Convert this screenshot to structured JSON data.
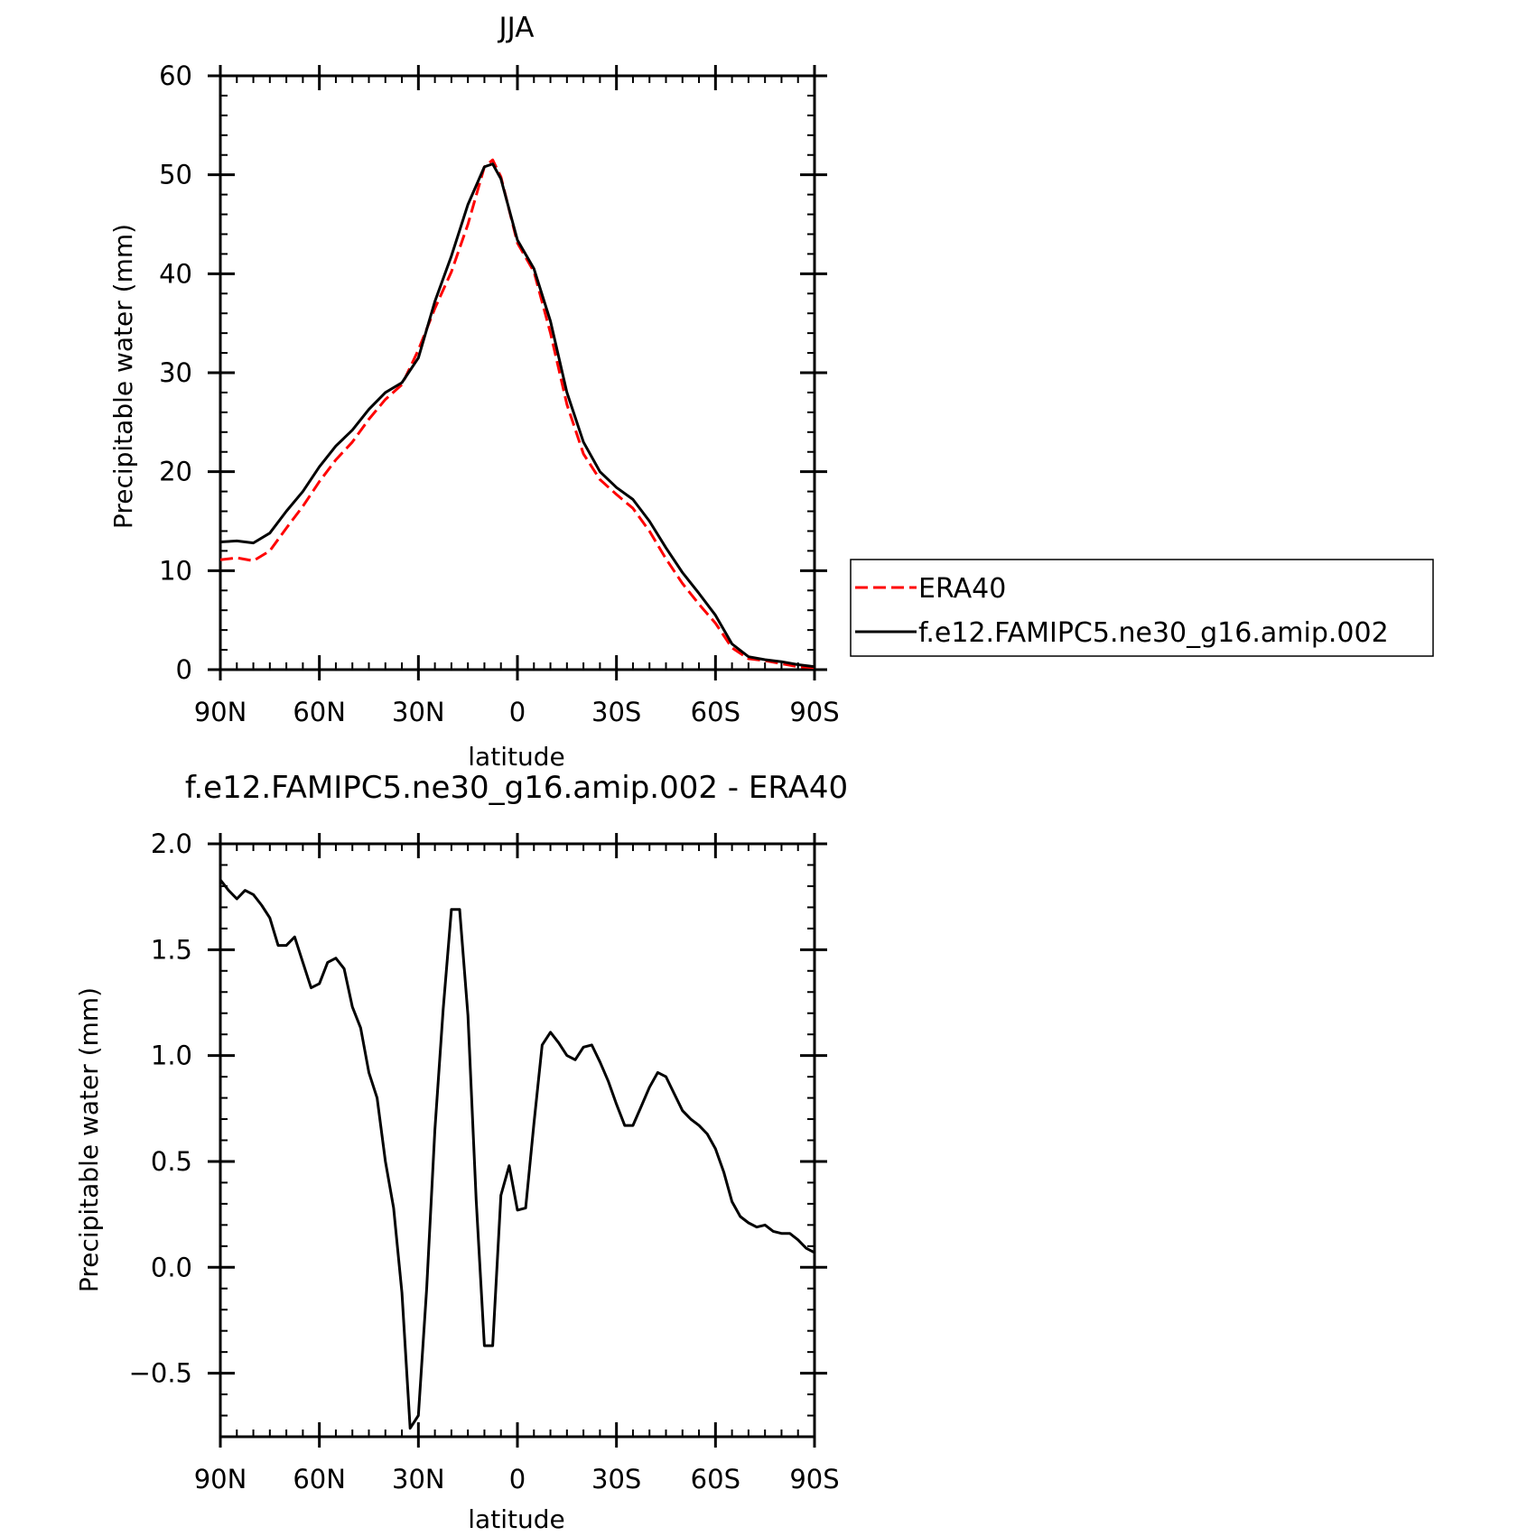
{
  "chart_data": [
    {
      "type": "line",
      "title": "JJA",
      "xlabel": "latitude",
      "ylabel": "Precipitable water (mm)",
      "xlim": [
        90,
        -90
      ],
      "ylim": [
        0,
        60
      ],
      "x_ticks": [
        90,
        60,
        30,
        0,
        -30,
        -60,
        -90
      ],
      "x_tick_labels": [
        "90N",
        "60N",
        "30N",
        "0",
        "30S",
        "60S",
        "90S"
      ],
      "y_ticks": [
        0,
        10,
        20,
        30,
        40,
        50,
        60
      ],
      "y_tick_labels": [
        "0",
        "10",
        "20",
        "30",
        "40",
        "50",
        "60"
      ],
      "legend_position": "right",
      "series": [
        {
          "name": "ERA40",
          "color": "#ff0000",
          "dash": "dashed",
          "x": [
            90,
            85,
            80,
            75,
            70,
            65,
            60,
            55,
            50,
            45,
            40,
            35,
            30,
            25,
            20,
            15,
            10,
            7.5,
            5,
            0,
            -5,
            -10,
            -15,
            -20,
            -25,
            -30,
            -35,
            -40,
            -45,
            -50,
            -55,
            -60,
            -65,
            -70,
            -75,
            -80,
            -85,
            -90
          ],
          "values": [
            11.1,
            11.3,
            11.0,
            12.0,
            14.3,
            16.5,
            19.0,
            21.2,
            23.0,
            25.3,
            27.3,
            28.8,
            32.3,
            36.5,
            40.2,
            45.0,
            50.8,
            51.5,
            49.8,
            43.1,
            40.2,
            34.0,
            26.8,
            21.8,
            19.2,
            17.7,
            16.3,
            14.0,
            11.2,
            8.7,
            6.6,
            4.7,
            2.2,
            1.1,
            0.9,
            0.6,
            0.3,
            0.2
          ]
        },
        {
          "name": "f.e12.FAMIPC5.ne30_g16.amip.002",
          "color": "#000000",
          "dash": "solid",
          "x": [
            90,
            85,
            80,
            75,
            70,
            65,
            60,
            55,
            50,
            45,
            40,
            35,
            30,
            25,
            20,
            15,
            10,
            7.5,
            5,
            0,
            -5,
            -10,
            -15,
            -20,
            -25,
            -30,
            -35,
            -40,
            -45,
            -50,
            -55,
            -60,
            -65,
            -70,
            -75,
            -80,
            -85,
            -90
          ],
          "values": [
            12.9,
            13.0,
            12.8,
            13.8,
            16.0,
            18.0,
            20.5,
            22.6,
            24.2,
            26.3,
            28.0,
            29.0,
            31.5,
            37.2,
            41.8,
            47.0,
            50.8,
            51.1,
            49.6,
            43.4,
            40.5,
            35.2,
            28.0,
            23.0,
            20.0,
            18.4,
            17.2,
            15.0,
            12.3,
            9.8,
            7.7,
            5.5,
            2.6,
            1.3,
            1.0,
            0.8,
            0.5,
            0.3
          ]
        }
      ]
    },
    {
      "type": "line",
      "title": "f.e12.FAMIPC5.ne30_g16.amip.002 - ERA40",
      "xlabel": "latitude",
      "ylabel": "Precipitable water (mm)",
      "xlim": [
        90,
        -90
      ],
      "ylim": [
        -0.8,
        2.0
      ],
      "x_ticks": [
        90,
        60,
        30,
        0,
        -30,
        -60,
        -90
      ],
      "x_tick_labels": [
        "90N",
        "60N",
        "30N",
        "0",
        "30S",
        "60S",
        "90S"
      ],
      "y_ticks": [
        -0.5,
        0.0,
        0.5,
        1.0,
        1.5,
        2.0
      ],
      "y_tick_labels": [
        "−0.5",
        "0.0",
        "0.5",
        "1.0",
        "1.5",
        "2.0"
      ],
      "series": [
        {
          "color": "#000000",
          "dash": "solid",
          "x": [
            90,
            87.5,
            85,
            82.5,
            80,
            77.5,
            75,
            72.5,
            70,
            67.5,
            65,
            62.5,
            60,
            57.5,
            55,
            52.5,
            50,
            47.5,
            45,
            42.5,
            40,
            37.5,
            35,
            32.5,
            30,
            27.5,
            25,
            22.5,
            20,
            17.5,
            15,
            12.5,
            10,
            7.5,
            5,
            2.5,
            0,
            -2.5,
            -5,
            -7.5,
            -10,
            -12.5,
            -15,
            -17.5,
            -20,
            -22.5,
            -25,
            -27.5,
            -30,
            -32.5,
            -35,
            -37.5,
            -40,
            -42.5,
            -45,
            -47.5,
            -50,
            -52.5,
            -55,
            -57.5,
            -60,
            -62.5,
            -65,
            -67.5,
            -70,
            -72.5,
            -75,
            -77.5,
            -80,
            -82.5,
            -85,
            -87.5,
            -90
          ],
          "values": [
            1.83,
            1.78,
            1.74,
            1.78,
            1.76,
            1.71,
            1.65,
            1.52,
            1.52,
            1.56,
            1.44,
            1.32,
            1.34,
            1.44,
            1.46,
            1.41,
            1.23,
            1.13,
            0.92,
            0.8,
            0.5,
            0.28,
            -0.12,
            -0.76,
            -0.7,
            -0.1,
            0.65,
            1.22,
            1.69,
            1.69,
            1.19,
            0.32,
            -0.37,
            -0.37,
            0.34,
            0.48,
            0.27,
            0.28,
            0.68,
            1.05,
            1.11,
            1.06,
            1.0,
            0.98,
            1.04,
            1.05,
            0.97,
            0.88,
            0.77,
            0.67,
            0.67,
            0.76,
            0.85,
            0.92,
            0.9,
            0.82,
            0.74,
            0.7,
            0.67,
            0.63,
            0.56,
            0.45,
            0.31,
            0.24,
            0.21,
            0.19,
            0.2,
            0.17,
            0.16,
            0.16,
            0.13,
            0.09,
            0.07
          ]
        }
      ]
    }
  ]
}
